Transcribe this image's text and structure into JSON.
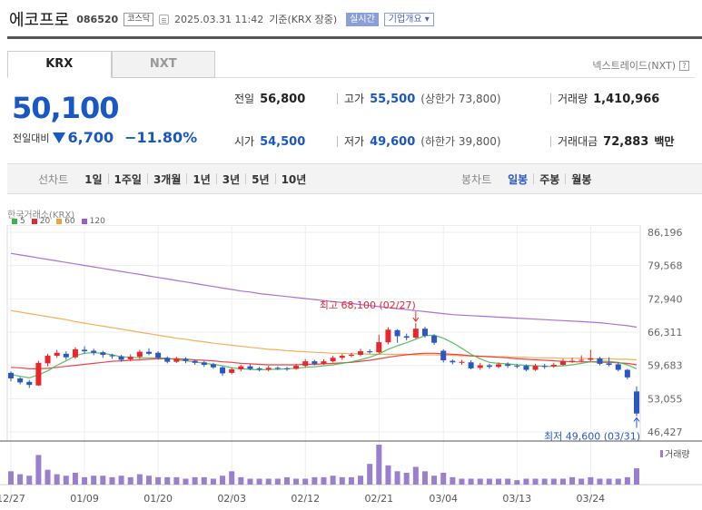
{
  "header": {
    "name": "에코프로",
    "code": "086520",
    "market": "코스닥",
    "time": "2025.03.31 11:42",
    "basis": "기준(KRX 장중)",
    "live_badge": "실시간",
    "company_info": "기업개요"
  },
  "tabs": [
    {
      "label": "KRX"
    },
    {
      "label": "NXT"
    }
  ],
  "nxt_link": "넥스트레이드(NXT)",
  "quote": {
    "price": "50,100",
    "change_label": "전일대비",
    "change": "6,700",
    "change_pct": "−11.80%"
  },
  "stats": {
    "prev_close": {
      "label": "전일",
      "value": "56,800"
    },
    "high": {
      "label": "고가",
      "value": "55,500",
      "sub": "(상한가 73,800)"
    },
    "volume": {
      "label": "거래량",
      "value": "1,410,966"
    },
    "open": {
      "label": "시가",
      "value": "54,500"
    },
    "low": {
      "label": "저가",
      "value": "49,600",
      "sub": "(하한가 39,800)"
    },
    "amount": {
      "label": "거래대금",
      "value": "72,883",
      "unit": "백만"
    }
  },
  "toolbar": {
    "line_label": "선차트",
    "line_items": [
      "1일",
      "1주일",
      "3개월",
      "1년",
      "3년",
      "5년",
      "10년"
    ],
    "candle_label": "봉차트",
    "candle_items": [
      "일봉",
      "주봉",
      "월봉"
    ],
    "candle_selected": "일봉"
  },
  "chart_data": {
    "type": "candlestick",
    "source": "한국거래소(KRX)",
    "ma_legend": [
      {
        "label": "5",
        "color": "#3cb44b"
      },
      {
        "label": "20",
        "color": "#e8262c"
      },
      {
        "label": "60",
        "color": "#f5a03c"
      },
      {
        "label": "120",
        "color": "#9b59d0"
      }
    ],
    "y_ticks": [
      "86,196",
      "79,568",
      "72,940",
      "66,311",
      "59,683",
      "53,055",
      "46,427"
    ],
    "ylim": [
      46427,
      86196
    ],
    "x_ticks": [
      "12/27",
      "01/09",
      "01/20",
      "02/03",
      "02/12",
      "02/21",
      "03/04",
      "03/13",
      "03/24"
    ],
    "x_tick_index": [
      0,
      8,
      16,
      24,
      32,
      40,
      47,
      55,
      63
    ],
    "volume_label": "거래량",
    "up_color": "#e8262c",
    "down_color": "#2a57c4",
    "annotations": {
      "high": {
        "text": "최고 68,100 (02/27)",
        "value": 68100,
        "index": 44
      },
      "low": {
        "text": "최저 49,600 (03/31)",
        "value": 49600,
        "index": 68
      }
    },
    "candles": [
      [
        58200,
        57100,
        58500,
        56500
      ],
      [
        57100,
        56300,
        57400,
        55900
      ],
      [
        56400,
        55800,
        56800,
        55200
      ],
      [
        55700,
        60200,
        60600,
        55600
      ],
      [
        60100,
        61600,
        62000,
        59500
      ],
      [
        61600,
        62200,
        62800,
        61200
      ],
      [
        62000,
        61300,
        62500,
        60800
      ],
      [
        61300,
        62900,
        63300,
        61000
      ],
      [
        62800,
        62500,
        63500,
        62000
      ],
      [
        62600,
        62200,
        63000,
        61700
      ],
      [
        62300,
        61800,
        62600,
        61200
      ],
      [
        61700,
        61500,
        62000,
        61000
      ],
      [
        61500,
        60800,
        61800,
        60400
      ],
      [
        60900,
        61400,
        61900,
        60500
      ],
      [
        61400,
        62400,
        62800,
        61000
      ],
      [
        62400,
        62000,
        63100,
        61700
      ],
      [
        62200,
        61200,
        62500,
        60800
      ],
      [
        61200,
        60400,
        61500,
        60100
      ],
      [
        60400,
        61000,
        61400,
        60200
      ],
      [
        61000,
        60600,
        61300,
        60100
      ],
      [
        60600,
        60200,
        60800,
        59800
      ],
      [
        60300,
        59800,
        60600,
        59400
      ],
      [
        59900,
        59300,
        60200,
        59000
      ],
      [
        59300,
        58100,
        59500,
        57600
      ],
      [
        58200,
        58900,
        59300,
        57900
      ],
      [
        58900,
        59500,
        59800,
        58500
      ],
      [
        59500,
        59000,
        59900,
        58700
      ],
      [
        59100,
        58900,
        59400,
        58500
      ],
      [
        58800,
        59200,
        59600,
        58500
      ],
      [
        59200,
        59100,
        59500,
        58800
      ],
      [
        59100,
        59000,
        59400,
        58600
      ],
      [
        59000,
        59600,
        60000,
        58800
      ],
      [
        59600,
        60500,
        60900,
        59300
      ],
      [
        60500,
        60000,
        60800,
        59700
      ],
      [
        60000,
        60500,
        60900,
        59800
      ],
      [
        60500,
        61200,
        61600,
        60300
      ],
      [
        61200,
        61600,
        62000,
        60800
      ],
      [
        61600,
        61800,
        62200,
        61300
      ],
      [
        61800,
        62500,
        63000,
        61500
      ],
      [
        62500,
        62300,
        62900,
        62000
      ],
      [
        62300,
        64300,
        65800,
        62100
      ],
      [
        64300,
        66800,
        67300,
        63900
      ],
      [
        66700,
        65500,
        66900,
        64200
      ],
      [
        65500,
        65200,
        66000,
        64700
      ],
      [
        65200,
        67000,
        68100,
        65000
      ],
      [
        67000,
        65600,
        67400,
        65200
      ],
      [
        65600,
        64200,
        65900,
        63800
      ],
      [
        62600,
        60700,
        62900,
        60300
      ],
      [
        60600,
        60300,
        60900,
        59900
      ],
      [
        60200,
        60400,
        60800,
        59800
      ],
      [
        60300,
        59100,
        60700,
        58900
      ],
      [
        59200,
        59700,
        60200,
        58800
      ],
      [
        59700,
        59400,
        60000,
        59000
      ],
      [
        59400,
        59900,
        60300,
        59100
      ],
      [
        59900,
        59600,
        60300,
        59200
      ],
      [
        59600,
        59500,
        60000,
        59100
      ],
      [
        59600,
        58800,
        59900,
        58500
      ],
      [
        58800,
        59600,
        60000,
        58600
      ],
      [
        59600,
        59400,
        60000,
        59000
      ],
      [
        59500,
        59800,
        60200,
        59200
      ],
      [
        59800,
        60500,
        61000,
        59600
      ],
      [
        60500,
        60600,
        61200,
        60200
      ],
      [
        60700,
        60800,
        61700,
        60300
      ],
      [
        60800,
        61100,
        62800,
        60500
      ],
      [
        61100,
        60000,
        61400,
        59700
      ],
      [
        60100,
        59800,
        61300,
        59500
      ],
      [
        59900,
        58800,
        60300,
        58500
      ],
      [
        58800,
        57300,
        59000,
        56900
      ],
      [
        54500,
        50100,
        55500,
        49600
      ]
    ],
    "volumes": [
      9,
      7,
      6,
      20,
      10,
      7,
      6,
      8,
      5,
      6,
      6,
      5,
      6,
      5,
      7,
      6,
      5,
      5,
      5,
      4,
      5,
      5,
      4,
      6,
      9,
      5,
      4,
      4,
      4,
      4,
      5,
      4,
      4,
      5,
      5,
      6,
      5,
      5,
      6,
      14,
      27,
      13,
      9,
      8,
      12,
      9,
      6,
      8,
      5,
      4,
      4,
      4,
      4,
      4,
      4,
      3,
      4,
      4,
      4,
      4,
      4,
      5,
      4,
      5,
      4,
      4,
      4,
      5,
      11
    ],
    "ma5": [
      57900,
      57500,
      57200,
      57800,
      58600,
      59700,
      60600,
      61600,
      62100,
      62200,
      62100,
      61800,
      61400,
      61300,
      61200,
      61200,
      61200,
      61100,
      60800,
      60600,
      60400,
      60100,
      59900,
      59600,
      59200,
      59000,
      58900,
      58800,
      58900,
      58900,
      59000,
      59100,
      59300,
      59400,
      59600,
      59800,
      60100,
      60400,
      60800,
      61300,
      62000,
      62900,
      63600,
      64200,
      64900,
      65600,
      65700,
      65100,
      64200,
      63100,
      61900,
      61000,
      60300,
      60100,
      60000,
      59800,
      59700,
      59600,
      59500,
      59500,
      59600,
      59800,
      60100,
      60400,
      60500,
      60500,
      60300,
      59800,
      59000
    ],
    "ma20": [
      59300,
      59200,
      59000,
      59000,
      59100,
      59300,
      59500,
      59700,
      59900,
      60100,
      60300,
      60500,
      60600,
      60700,
      60800,
      60900,
      61000,
      61000,
      61000,
      60900,
      60800,
      60700,
      60600,
      60400,
      60300,
      60100,
      60000,
      59900,
      59800,
      59800,
      59800,
      59800,
      59900,
      59900,
      60000,
      60100,
      60200,
      60300,
      60500,
      60700,
      61000,
      61300,
      61600,
      61800,
      62000,
      62100,
      62100,
      62000,
      61900,
      61800,
      61600,
      61500,
      61400,
      61300,
      61200,
      61000,
      60900,
      60800,
      60700,
      60600,
      60500,
      60400,
      60400,
      60400,
      60300,
      60300,
      60200,
      60100,
      59800
    ],
    "ma60": [
      70600,
      70300,
      70000,
      69700,
      69400,
      69100,
      68800,
      68400,
      68100,
      67800,
      67500,
      67200,
      66900,
      66600,
      66300,
      66000,
      65700,
      65400,
      65100,
      64900,
      64600,
      64400,
      64100,
      63900,
      63700,
      63500,
      63300,
      63100,
      62900,
      62800,
      62600,
      62500,
      62400,
      62300,
      62200,
      62100,
      62100,
      62000,
      62000,
      61900,
      61900,
      61900,
      61900,
      61900,
      61800,
      61800,
      61800,
      61700,
      61700,
      61600,
      61600,
      61500,
      61500,
      61400,
      61400,
      61300,
      61300,
      61200,
      61200,
      61200,
      61100,
      61100,
      61100,
      61000,
      61000,
      61000,
      60900,
      60900,
      60800
    ],
    "ma120": [
      82000,
      81700,
      81400,
      81100,
      80800,
      80500,
      80200,
      79900,
      79600,
      79300,
      79000,
      78700,
      78400,
      78100,
      77800,
      77500,
      77200,
      76900,
      76600,
      76300,
      76000,
      75700,
      75400,
      75100,
      74800,
      74500,
      74300,
      74000,
      73800,
      73600,
      73400,
      73200,
      73000,
      72800,
      72600,
      72400,
      72200,
      72000,
      71800,
      71600,
      71400,
      71200,
      71000,
      70800,
      70600,
      70400,
      70200,
      70000,
      69800,
      69700,
      69600,
      69500,
      69400,
      69300,
      69200,
      69100,
      69000,
      68900,
      68800,
      68700,
      68600,
      68500,
      68400,
      68300,
      68200,
      68000,
      67800,
      67600,
      67300
    ]
  }
}
